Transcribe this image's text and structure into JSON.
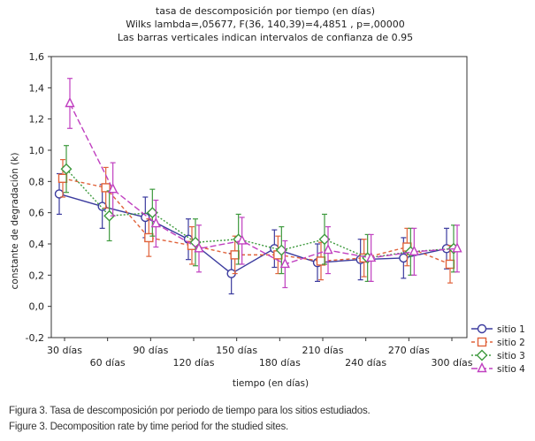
{
  "chart_data": {
    "type": "line",
    "title": "tasa de descomposición por tiempo (en días)",
    "subtitle_1": "Wilks lambda=,05677, F(36, 140,39)=4,4851 , p=,00000",
    "subtitle_2": "Las barras verticales indican intervalos de confianza de 0.95",
    "xlabel": "tiempo (en días)",
    "ylabel": "constante de degradación (k)",
    "ylim": [
      -0.2,
      1.6
    ],
    "yticks": [
      "-0,2",
      "0,0",
      "0,2",
      "0,4",
      "0,6",
      "0,8",
      "1,0",
      "1,2",
      "1,4",
      "1,6"
    ],
    "categories": [
      "30 días",
      "60 días",
      "90 días",
      "120 días",
      "150 días",
      "180 días",
      "210 días",
      "240 días",
      "270 días",
      "300 días"
    ],
    "grid": false,
    "legend_position": "bottom-right",
    "series": [
      {
        "name": "sitio 1",
        "color": "#3b3b9e",
        "marker": "circle",
        "dash": "solid",
        "values": [
          0.72,
          0.64,
          0.57,
          0.43,
          0.21,
          0.37,
          0.28,
          0.3,
          0.31,
          0.37
        ],
        "ci": [
          0.13,
          0.14,
          0.13,
          0.13,
          0.13,
          0.12,
          0.12,
          0.13,
          0.13,
          0.13
        ]
      },
      {
        "name": "sitio 2",
        "color": "#e0623a",
        "marker": "square",
        "dash": "4,3",
        "values": [
          0.82,
          0.76,
          0.44,
          0.39,
          0.33,
          0.33,
          0.29,
          0.31,
          0.38,
          0.27
        ],
        "ci": [
          0.12,
          0.13,
          0.12,
          0.12,
          0.12,
          0.12,
          0.12,
          0.12,
          0.12,
          0.12
        ]
      },
      {
        "name": "sitio 3",
        "color": "#3e9a3e",
        "marker": "diamond",
        "dash": "2,2",
        "values": [
          0.88,
          0.58,
          0.6,
          0.41,
          0.43,
          0.36,
          0.43,
          0.31,
          0.35,
          0.37
        ],
        "ci": [
          0.15,
          0.16,
          0.15,
          0.15,
          0.16,
          0.15,
          0.16,
          0.15,
          0.15,
          0.15
        ]
      },
      {
        "name": "sitio 4",
        "color": "#c040c0",
        "marker": "triangle",
        "dash": "7,3",
        "values": [
          1.3,
          0.75,
          0.53,
          0.37,
          0.42,
          0.27,
          0.36,
          0.31,
          0.35,
          0.37
        ],
        "ci": [
          0.16,
          0.17,
          0.15,
          0.15,
          0.15,
          0.15,
          0.15,
          0.15,
          0.15,
          0.15
        ]
      }
    ]
  },
  "captions": {
    "spanish": "Figura 3. Tasa de descomposición por periodo de tiempo para los sitios estudiados.",
    "english": "Figure 3. Decomposition rate by time period for the studied sites."
  }
}
